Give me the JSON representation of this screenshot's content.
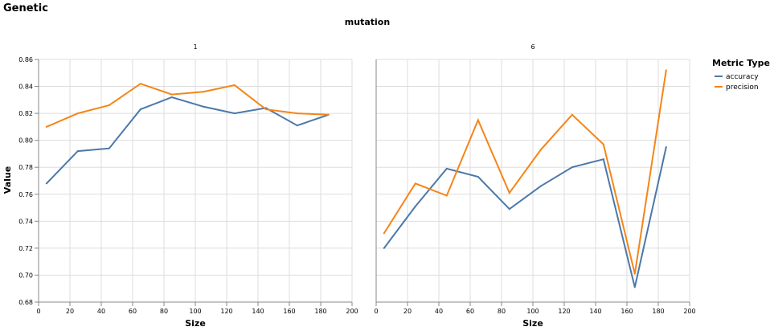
{
  "chart_data": {
    "type": "line",
    "title": "Genetic",
    "facet_title": "mutation",
    "xlabel": "Size",
    "ylabel": "Value",
    "xlim": [
      0,
      200
    ],
    "ylim": [
      0.68,
      0.86
    ],
    "x_ticks": [
      0,
      20,
      40,
      60,
      80,
      100,
      120,
      140,
      160,
      180,
      200
    ],
    "y_ticks": [
      0.68,
      0.7,
      0.72,
      0.74,
      0.76,
      0.78,
      0.8,
      0.82,
      0.84,
      0.86
    ],
    "grid": true,
    "legend": {
      "title": "Metric Type",
      "position": "top-right",
      "entries": [
        {
          "name": "accuracy",
          "color": "#4c78a8"
        },
        {
          "name": "precision",
          "color": "#f58518"
        }
      ]
    },
    "panels": [
      {
        "label": "1",
        "x": [
          5,
          25,
          45,
          65,
          85,
          105,
          125,
          145,
          165,
          185
        ],
        "series": [
          {
            "name": "accuracy",
            "color": "#4c78a8",
            "values": [
              0.768,
              0.792,
              0.794,
              0.823,
              0.832,
              0.825,
              0.82,
              0.824,
              0.811,
              0.819
            ]
          },
          {
            "name": "precision",
            "color": "#f58518",
            "values": [
              0.81,
              0.82,
              0.826,
              0.842,
              0.834,
              0.836,
              0.841,
              0.823,
              0.82,
              0.819
            ]
          }
        ]
      },
      {
        "label": "6",
        "x": [
          5,
          25,
          45,
          65,
          85,
          105,
          125,
          145,
          165,
          185
        ],
        "series": [
          {
            "name": "accuracy",
            "color": "#4c78a8",
            "values": [
              0.72,
              0.751,
              0.779,
              0.773,
              0.749,
              0.766,
              0.78,
              0.786,
              0.691,
              0.795
            ]
          },
          {
            "name": "precision",
            "color": "#f58518",
            "values": [
              0.731,
              0.768,
              0.759,
              0.815,
              0.761,
              0.793,
              0.819,
              0.797,
              0.701,
              0.852
            ]
          }
        ]
      }
    ]
  }
}
